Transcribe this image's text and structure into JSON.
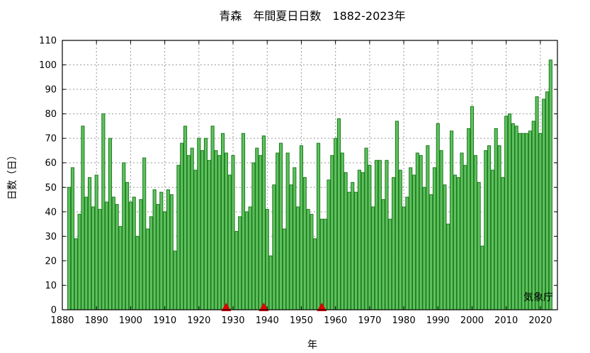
{
  "chart_data": {
    "type": "bar",
    "title": "青森　年間夏日日数　1882-2023年",
    "xlabel": "年",
    "ylabel": "日数（日）",
    "source": "気象庁",
    "xlim": [
      1880,
      2025
    ],
    "ylim": [
      0,
      110
    ],
    "x_ticks": [
      1880,
      1890,
      1900,
      1910,
      1920,
      1930,
      1940,
      1950,
      1960,
      1970,
      1980,
      1990,
      2000,
      2010,
      2020
    ],
    "y_ticks": [
      0,
      10,
      20,
      30,
      40,
      50,
      60,
      70,
      80,
      90,
      100,
      110
    ],
    "grid": true,
    "colors": {
      "bar_fill": "#5fc05f",
      "bar_edge": "#1a7a1a",
      "marker": "#e00000"
    },
    "years": [
      1882,
      1883,
      1884,
      1885,
      1886,
      1887,
      1888,
      1889,
      1890,
      1891,
      1892,
      1893,
      1894,
      1895,
      1896,
      1897,
      1898,
      1899,
      1900,
      1901,
      1902,
      1903,
      1904,
      1905,
      1906,
      1907,
      1908,
      1909,
      1910,
      1911,
      1912,
      1913,
      1914,
      1915,
      1916,
      1917,
      1918,
      1919,
      1920,
      1921,
      1922,
      1923,
      1924,
      1925,
      1926,
      1927,
      1928,
      1929,
      1930,
      1931,
      1932,
      1933,
      1934,
      1935,
      1936,
      1937,
      1938,
      1939,
      1940,
      1941,
      1942,
      1943,
      1944,
      1945,
      1946,
      1947,
      1948,
      1949,
      1950,
      1951,
      1952,
      1953,
      1954,
      1955,
      1956,
      1957,
      1958,
      1959,
      1960,
      1961,
      1962,
      1963,
      1964,
      1965,
      1966,
      1967,
      1968,
      1969,
      1970,
      1971,
      1972,
      1973,
      1974,
      1975,
      1976,
      1977,
      1978,
      1979,
      1980,
      1981,
      1982,
      1983,
      1984,
      1985,
      1986,
      1987,
      1988,
      1989,
      1990,
      1991,
      1992,
      1993,
      1994,
      1995,
      1996,
      1997,
      1998,
      1999,
      2000,
      2001,
      2002,
      2003,
      2004,
      2005,
      2006,
      2007,
      2008,
      2009,
      2010,
      2011,
      2012,
      2013,
      2014,
      2015,
      2016,
      2017,
      2018,
      2019,
      2020,
      2021,
      2022,
      2023
    ],
    "values": [
      50,
      58,
      29,
      39,
      75,
      46,
      54,
      42,
      55,
      41,
      80,
      44,
      70,
      46,
      43,
      34,
      60,
      52,
      44,
      46,
      30,
      45,
      62,
      33,
      38,
      49,
      43,
      48,
      40,
      49,
      47,
      24,
      59,
      68,
      75,
      63,
      66,
      57,
      70,
      65,
      70,
      61,
      75,
      65,
      63,
      72,
      64,
      55,
      63,
      32,
      38,
      72,
      40,
      42,
      60,
      66,
      63,
      71,
      41,
      22,
      51,
      64,
      68,
      33,
      64,
      51,
      58,
      42,
      67,
      54,
      41,
      39,
      29,
      68,
      37,
      37,
      53,
      63,
      70,
      78,
      64,
      56,
      48,
      52,
      48,
      57,
      56,
      66,
      59,
      42,
      61,
      61,
      45,
      61,
      37,
      54,
      77,
      57,
      42,
      46,
      58,
      55,
      64,
      63,
      50,
      67,
      47,
      58,
      76,
      65,
      51,
      35,
      73,
      55,
      54,
      64,
      59,
      74,
      83,
      63,
      52,
      26,
      65,
      67,
      57,
      74,
      67,
      54,
      79,
      80,
      76,
      75,
      72,
      72,
      72,
      73,
      77,
      87,
      72,
      86,
      89,
      102
    ],
    "markers": [
      1928,
      1939,
      1956
    ]
  }
}
